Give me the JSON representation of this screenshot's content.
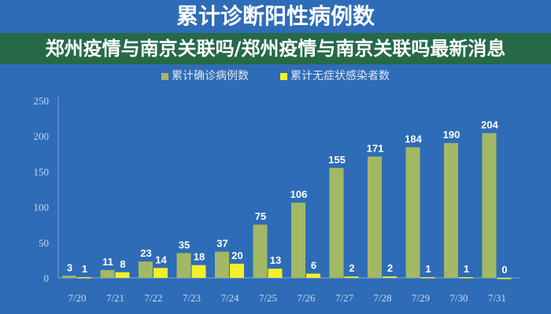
{
  "chart_data": {
    "type": "bar",
    "title": "累计诊断阳性病例数",
    "categories": [
      "7/20",
      "7/21",
      "7/22",
      "7/23",
      "7/24",
      "7/25",
      "7/26",
      "7/27",
      "7/28",
      "7/29",
      "7/30",
      "7/31"
    ],
    "series": [
      {
        "name": "累计确诊病例数",
        "color": "#a3b865",
        "values": [
          3,
          11,
          23,
          35,
          37,
          75,
          106,
          155,
          171,
          184,
          190,
          204
        ]
      },
      {
        "name": "累计无症状感染者数",
        "color": "#f5ee2a",
        "values": [
          1,
          8,
          14,
          18,
          20,
          13,
          6,
          2,
          2,
          1,
          1,
          0
        ]
      }
    ],
    "ylim": [
      0,
      250
    ],
    "yticks": [
      0,
      50,
      100,
      150,
      200,
      250
    ],
    "legend": "top",
    "grid": false
  },
  "banner": {
    "text": "郑州疫情与南京关联吗/郑州疫情与南京关联吗最新消息"
  }
}
